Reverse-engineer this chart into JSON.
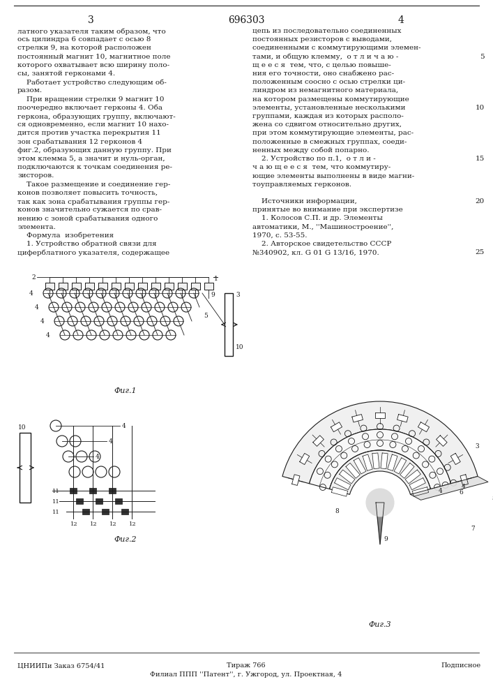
{
  "page_number_left": "3",
  "patent_number": "696303",
  "page_number_right": "4",
  "background_color": "#ffffff",
  "text_color": "#1a1a1a",
  "left_column_text": [
    "латного указателя таким образом, что",
    "ось цилиндра 6 совпадает с осью 8",
    "стрелки 9, на которой расположен",
    "постоянный магнит 10, магнитное поле",
    "которого охватывает всю ширину поло-",
    "сы, занятой герконами 4.",
    "    Работает устройство следующим об-",
    "разом.",
    "    При вращении стрелки 9 магнит 10",
    "поочередно включает герконы 4. Оба",
    "геркона, образующих группу, включают-",
    "ся одновременно, если магнит 10 нахо-",
    "дится против участка перекрытия 11",
    "зон срабатывания 12 герконов 4",
    "фиг.2, образующих данную группу. При",
    "этом клемма 5, а значит и нуль-орган,",
    "подключаются к точкам соединения ре-",
    "зисторов.",
    "    Такое размещение и соединение гер-",
    "конов позволяет повысить точность,",
    "так как зона срабатывания группы гер-",
    "конов значительно сужается по срав-",
    "нению с зоной срабатывания одного",
    "элемента.",
    "    Формула  изобретения",
    "    1. Устройство обратной связи для",
    "циферблатного указателя, содержащее"
  ],
  "right_column_text": [
    "цепь из последовательно соединенных",
    "постоянных резисторов с выводами,",
    "соединенными с коммутирующими элемен-",
    "тами, и общую клемму,  о т л и ч а ю -",
    "щ е е с я  тем, что, с целью повыше-",
    "ния его точности, оно снабжено рас-",
    "положенным соосно с осью стрелки ци-",
    "линдром из немагнитного материала,",
    "на котором размещены коммутирующие",
    "элементы, установленные несколькими",
    "группами, каждая из которых располо-",
    "жена со сдвигом относительно других,",
    "при этом коммутирующие элементы, рас-",
    "положенные в смежных группах, соеди-",
    "ненных между собой попарно.",
    "    2. Устройство по п.1,  о т л и -",
    "ч а ю щ е е с я  тем, что коммутиру-",
    "ющие элементы выполнены в виде магни-",
    "тоуправляемых герконов.",
    "",
    "    Источники информации,",
    "принятые во внимание при экспертизе",
    "    1. Колосов С.П. и др. Элементы",
    "автоматики, М., ''Машиностроение'',",
    "1970, с. 53-55.",
    "    2. Авторское свидетельство СССР",
    "№340902, кл. G 01 G 13/16, 1970."
  ],
  "right_number_lines": {
    "3": "5",
    "9": "10",
    "15": "15",
    "20": "20",
    "26": "25"
  },
  "bottom_text_left": "ЦНИИПи Заказ 6754/41",
  "bottom_text_center": "Тираж 766",
  "bottom_text_right": "Подписное",
  "bottom_text2": "Филиал ППП ''Патент'', г. Ужгород, ул. Проектная, 4",
  "fig1_label": "Фиг.1",
  "fig2_label": "Фиг.2",
  "fig3_label": "Фиг.3",
  "font_size": 7.5,
  "header_font_size": 10
}
